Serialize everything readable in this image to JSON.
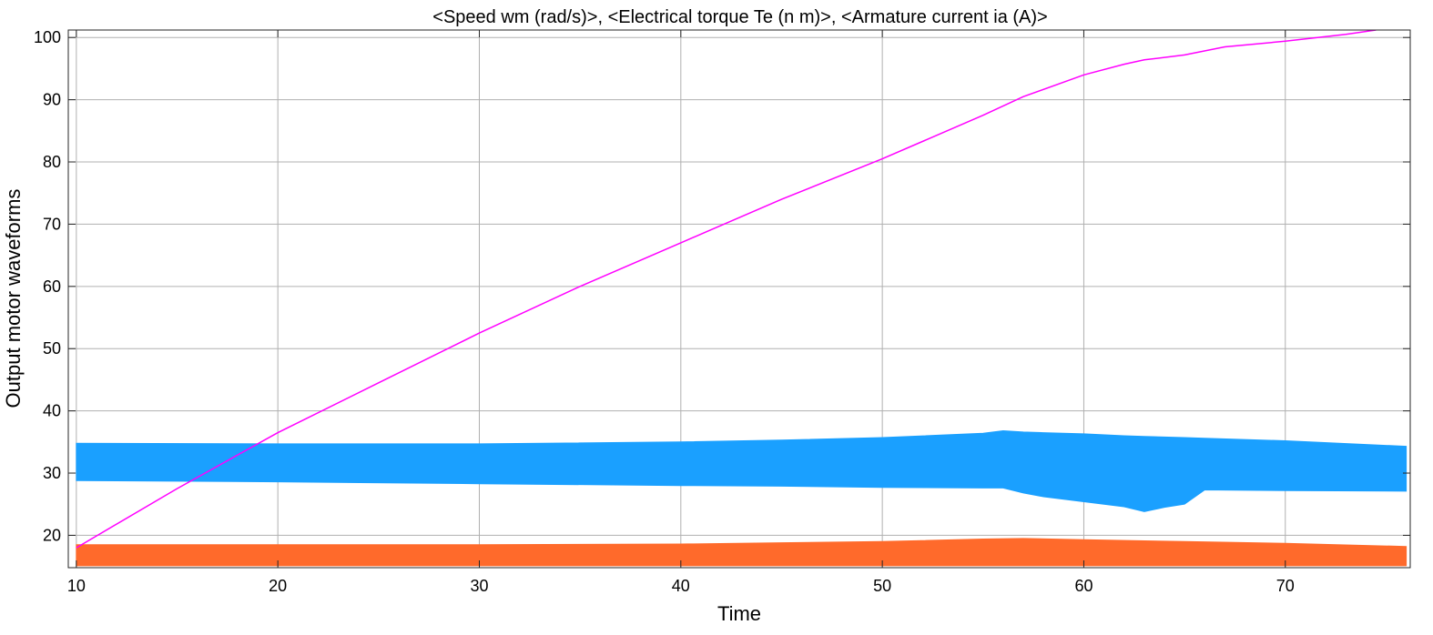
{
  "chart_data": {
    "type": "line",
    "title": "<Speed wm (rad/s)>, <Electrical torque Te (n m)>, <Armature current ia (A)>",
    "xlabel": "Time",
    "ylabel": "Output motor waveforms",
    "xlim": [
      9.6,
      76.2
    ],
    "ylim": [
      14.8,
      101.2
    ],
    "xticks": [
      10,
      20,
      30,
      40,
      50,
      60,
      70
    ],
    "yticks": [
      20,
      30,
      40,
      50,
      60,
      70,
      80,
      90,
      100
    ],
    "grid": true,
    "legend": "none",
    "series": [
      {
        "role": "speed",
        "kind": "line",
        "color": "#ff00ff",
        "x": [
          10,
          15,
          20,
          25,
          30,
          35,
          40,
          45,
          50,
          55,
          57,
          60,
          62,
          63,
          65,
          67,
          70,
          73,
          74.5
        ],
        "y": [
          18,
          27.5,
          36.5,
          44.5,
          52.5,
          60,
          67,
          74,
          80.5,
          87.5,
          90.5,
          94,
          95.7,
          96.4,
          97.2,
          98.5,
          99.4,
          100.5,
          101.2
        ]
      },
      {
        "role": "current",
        "kind": "band",
        "color": "#1aa0ff",
        "x": [
          10,
          20,
          30,
          40,
          45,
          50,
          55,
          56,
          57,
          58,
          60,
          62,
          63,
          64,
          65,
          66,
          70,
          76
        ],
        "upper": [
          34.8,
          34.7,
          34.7,
          35,
          35.3,
          35.7,
          36.4,
          36.8,
          36.6,
          36.5,
          36.3,
          36,
          35.9,
          35.8,
          35.7,
          35.6,
          35.2,
          34.3
        ],
        "lower": [
          28.8,
          28.6,
          28.3,
          28,
          27.9,
          27.7,
          27.6,
          27.6,
          26.8,
          26.2,
          25.4,
          24.6,
          23.8,
          24.5,
          25,
          27.3,
          27.2,
          27.1
        ]
      },
      {
        "role": "torque",
        "kind": "band",
        "color": "#ff6a2b",
        "x": [
          10,
          20,
          30,
          40,
          45,
          50,
          55,
          57,
          60,
          65,
          70,
          76
        ],
        "upper": [
          18.5,
          18.5,
          18.5,
          18.6,
          18.8,
          19,
          19.4,
          19.5,
          19.3,
          19,
          18.7,
          18.2
        ],
        "lower": [
          15.1,
          15.1,
          15.1,
          15.1,
          15.1,
          15.1,
          15.1,
          15.1,
          15.1,
          15.1,
          15.1,
          15.1
        ]
      }
    ]
  }
}
